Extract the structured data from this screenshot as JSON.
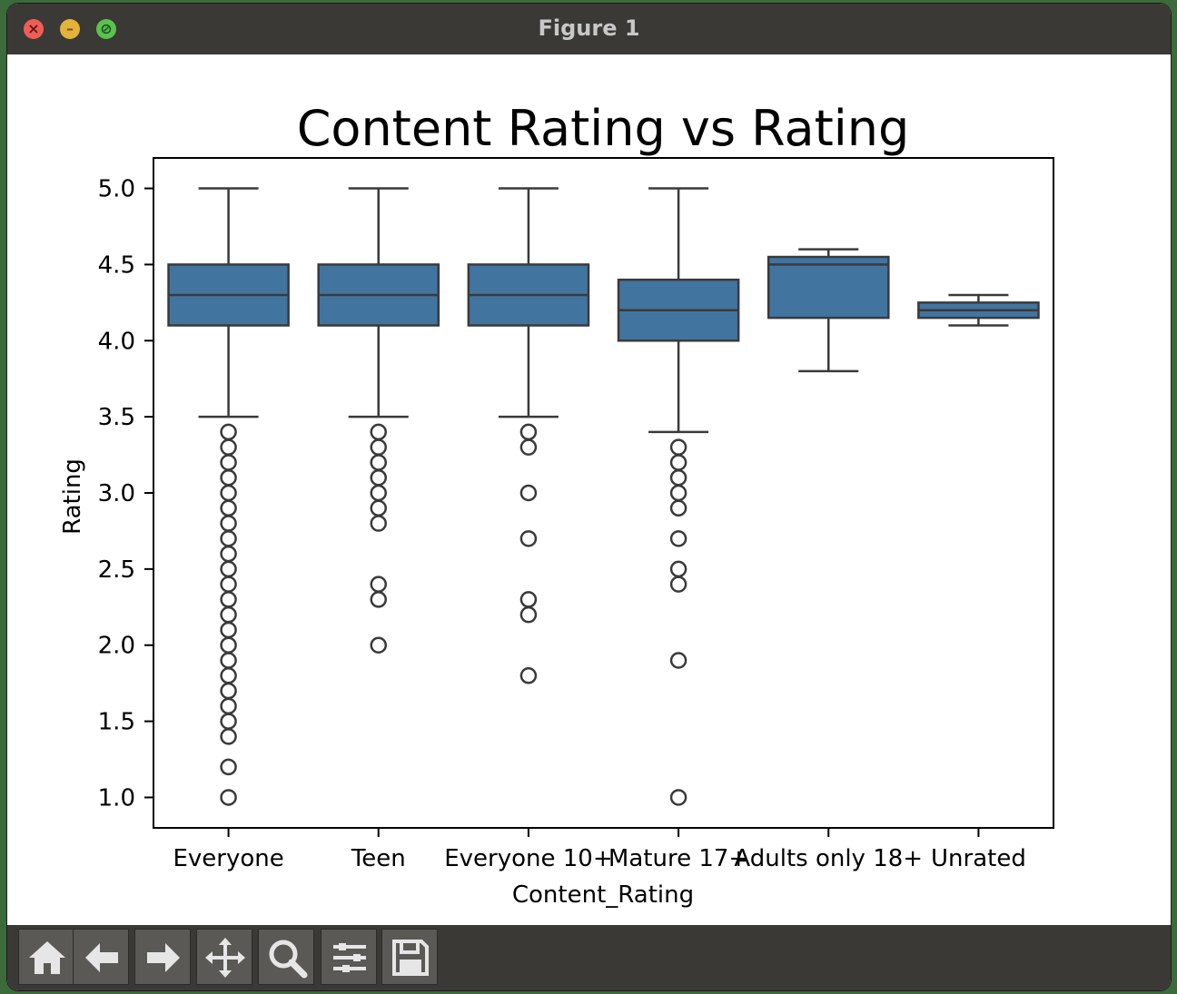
{
  "window": {
    "title": "Figure 1"
  },
  "toolbar": {
    "tools": [
      {
        "icon": "home-icon"
      },
      {
        "icon": "back-arrow-icon"
      },
      {
        "icon": "forward-arrow-icon"
      },
      {
        "icon": "pan-icon"
      },
      {
        "icon": "zoom-icon"
      },
      {
        "icon": "configure-subplots-icon"
      },
      {
        "icon": "save-icon"
      }
    ]
  },
  "chart_data": {
    "type": "boxplot",
    "title": "Content Rating vs Rating",
    "xlabel": "Content_Rating",
    "ylabel": "Rating",
    "ylim": [
      0.8,
      5.2
    ],
    "yticks": [
      "1.0",
      "1.5",
      "2.0",
      "2.5",
      "3.0",
      "3.5",
      "4.0",
      "4.5",
      "5.0"
    ],
    "box_color": "#4274a0",
    "line_color": "#3a3a3a",
    "categories": [
      "Everyone",
      "Teen",
      "Everyone 10+",
      "Mature 17+",
      "Adults only 18+",
      "Unrated"
    ],
    "boxes": [
      {
        "whisker_low": 3.5,
        "q1": 4.1,
        "median": 4.3,
        "q3": 4.5,
        "whisker_high": 5.0,
        "outliers": [
          1.0,
          1.2,
          1.4,
          1.5,
          1.6,
          1.7,
          1.8,
          1.9,
          2.0,
          2.1,
          2.2,
          2.3,
          2.4,
          2.5,
          2.6,
          2.7,
          2.8,
          2.9,
          3.0,
          3.1,
          3.2,
          3.3,
          3.4
        ]
      },
      {
        "whisker_low": 3.5,
        "q1": 4.1,
        "median": 4.3,
        "q3": 4.5,
        "whisker_high": 5.0,
        "outliers": [
          2.0,
          2.3,
          2.4,
          2.8,
          2.9,
          3.0,
          3.1,
          3.2,
          3.3,
          3.4
        ]
      },
      {
        "whisker_low": 3.5,
        "q1": 4.1,
        "median": 4.3,
        "q3": 4.5,
        "whisker_high": 5.0,
        "outliers": [
          1.8,
          2.2,
          2.3,
          2.7,
          3.0,
          3.3,
          3.4
        ]
      },
      {
        "whisker_low": 3.4,
        "q1": 4.0,
        "median": 4.2,
        "q3": 4.4,
        "whisker_high": 5.0,
        "outliers": [
          1.0,
          1.9,
          2.4,
          2.5,
          2.7,
          2.9,
          3.0,
          3.1,
          3.2,
          3.3
        ]
      },
      {
        "whisker_low": 3.8,
        "q1": 4.15,
        "median": 4.5,
        "q3": 4.55,
        "whisker_high": 4.6,
        "outliers": []
      },
      {
        "whisker_low": 4.1,
        "q1": 4.15,
        "median": 4.2,
        "q3": 4.25,
        "whisker_high": 4.3,
        "outliers": []
      }
    ]
  }
}
